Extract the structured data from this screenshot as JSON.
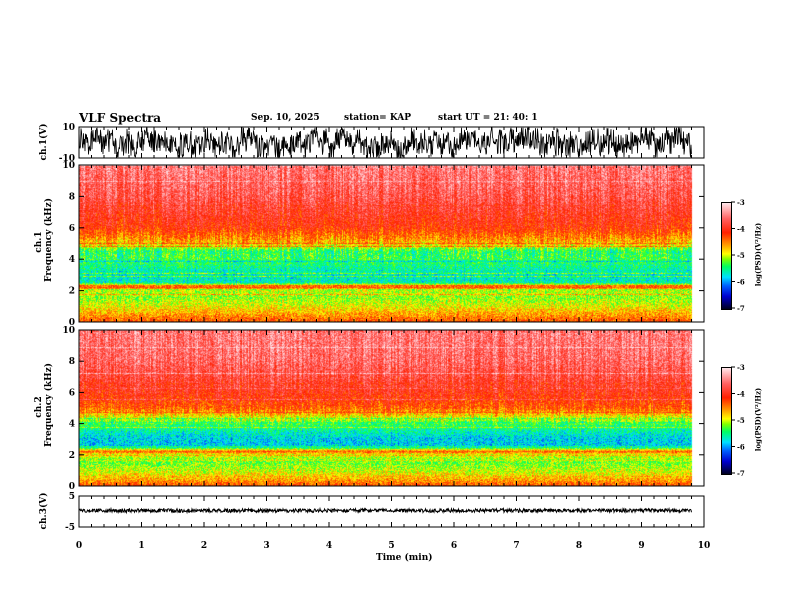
{
  "header": {
    "title": "VLF Spectra",
    "date": "Sep. 10, 2025",
    "station": "station= KAP",
    "start": "start  UT =   21: 40: 1"
  },
  "chart_data": [
    {
      "type": "line",
      "name": "ch1",
      "ylabel": "ch.1(V)",
      "ylim": [
        -10,
        10
      ],
      "yticks": [
        "10",
        "-10"
      ],
      "xlim": [
        0,
        10
      ],
      "data_end_min": 9.8,
      "description_level": "noise ±8 V"
    },
    {
      "type": "heatmap",
      "name": "ch1-spectrogram",
      "ylabel": "ch.1\nFrequency (kHz)",
      "ylim": [
        0,
        10
      ],
      "yticks": [
        "0",
        "2",
        "4",
        "6",
        "8",
        "10"
      ],
      "xlim": [
        0,
        10
      ],
      "data_end_min": 9.8,
      "colorbar": {
        "label": "log(PSD)(V²/Hz)",
        "ticks": [
          "-3",
          "-4",
          "-5",
          "-6",
          "-7"
        ],
        "range": [
          -7,
          -3
        ]
      },
      "profile_freq_kHz": [
        0,
        0.5,
        1,
        1.5,
        2,
        2.2,
        2.5,
        3,
        3.5,
        4,
        4.5,
        5,
        6,
        7,
        8,
        10
      ],
      "profile_logpsd": [
        -4.3,
        -4.6,
        -4.9,
        -5.1,
        -5.0,
        -4.2,
        -5.6,
        -5.7,
        -5.5,
        -5.3,
        -5.4,
        -4.7,
        -4.1,
        -3.9,
        -3.7,
        -3.5
      ]
    },
    {
      "type": "heatmap",
      "name": "ch2-spectrogram",
      "ylabel": "ch.2\nFrequency (kHz)",
      "ylim": [
        0,
        10
      ],
      "yticks": [
        "0",
        "2",
        "4",
        "6",
        "8",
        "10"
      ],
      "xlim": [
        0,
        10
      ],
      "data_end_min": 9.8,
      "colorbar": {
        "label": "log(PSD)(V²/Hz)",
        "ticks": [
          "-3",
          "-4",
          "-5",
          "-6",
          "-7"
        ],
        "range": [
          -7,
          -3
        ]
      },
      "profile_freq_kHz": [
        0,
        0.5,
        1,
        1.5,
        2,
        2.2,
        2.5,
        3,
        3.5,
        4,
        4.5,
        5,
        6,
        7,
        8,
        10
      ],
      "profile_logpsd": [
        -4.3,
        -4.7,
        -5.0,
        -5.2,
        -4.9,
        -4.3,
        -5.8,
        -5.8,
        -5.6,
        -5.3,
        -4.8,
        -4.3,
        -4.0,
        -3.8,
        -3.6,
        -3.5
      ]
    },
    {
      "type": "line",
      "name": "ch3",
      "ylabel": "ch.3(V)",
      "ylim": [
        -5,
        5
      ],
      "yticks": [
        "5",
        "-5"
      ],
      "xlim": [
        0,
        10
      ],
      "data_end_min": 9.8,
      "description_level": "~0 V"
    }
  ],
  "xaxis": {
    "label": "Time (min)",
    "ticks": [
      "0",
      "1",
      "2",
      "3",
      "4",
      "5",
      "6",
      "7",
      "8",
      "9",
      "10"
    ]
  }
}
